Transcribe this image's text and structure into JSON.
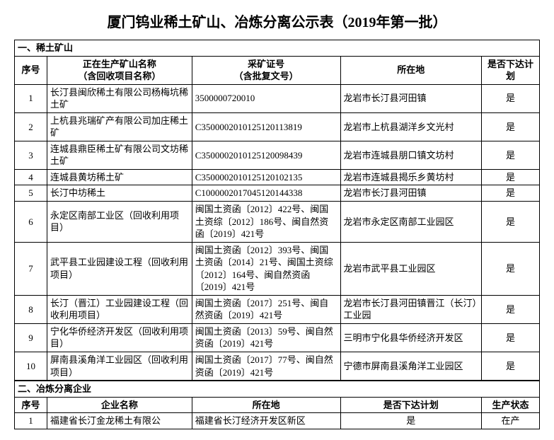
{
  "title": "厦门钨业稀土矿山、冶炼分离公示表（2019年第一批）",
  "section1": {
    "header": "一、稀土矿山",
    "columns": {
      "seq": "序号",
      "name": "正在生产矿山名称\n（含回收项目名称）",
      "license": "采矿证号\n（含批复文号）",
      "location": "所在地",
      "plan": "是否下达计划"
    },
    "rows": [
      {
        "seq": "1",
        "name": "长汀县闽欣稀土有限公司杨梅坑稀土矿",
        "license": "3500000720010",
        "location": "龙岩市长汀县河田镇",
        "plan": "是"
      },
      {
        "seq": "2",
        "name": "上杭县兆瑞矿产有限公司加庄稀土矿",
        "license": "C3500002010125120113819",
        "location": "龙岩市上杭县湖洋乡文光村",
        "plan": "是"
      },
      {
        "seq": "3",
        "name": "连城县鼎臣稀土矿有限公司文坊稀土矿",
        "license": "C3500002010125120098439",
        "location": "龙岩市连城县朋口镇文坊村",
        "plan": "是"
      },
      {
        "seq": "4",
        "name": "连城县黄坊稀土矿",
        "license": "C3500002010125120102135",
        "location": "龙岩市连城县揭乐乡黄坊村",
        "plan": "是"
      },
      {
        "seq": "5",
        "name": "长汀中坊稀土",
        "license": "C1000002017045120144338",
        "location": "龙岩市长汀县河田镇",
        "plan": "是"
      },
      {
        "seq": "6",
        "name": "永定区南部工业区（回收利用项目）",
        "license": "闽国土资函〔2012〕422号、闽国土资综〔2012〕186号、闽自然资函〔2019〕421号",
        "location": "龙岩市永定区南部工业园区",
        "plan": "是"
      },
      {
        "seq": "7",
        "name": "武平县工业园建设工程（回收利用项目）",
        "license": "闽国土资函〔2012〕393号、闽国土资函〔2014〕21号、闽国土资综〔2012〕164号、闽自然资函〔2019〕421号",
        "location": "龙岩市武平县工业园区",
        "plan": "是"
      },
      {
        "seq": "8",
        "name": "长汀（晋江）工业园建设工程（回收利用项目）",
        "license": "闽国土资函〔2017〕251号、闽自然资函〔2019〕421号",
        "location": "龙岩市长汀县河田镇晋江（长汀）工业园",
        "plan": "是"
      },
      {
        "seq": "9",
        "name": "宁化华侨经济开发区（回收利用项目）",
        "license": "闽国土资函〔2013〕59号、闽自然资函〔2019〕421号",
        "location": "三明市宁化县华侨经济开发区",
        "plan": "是"
      },
      {
        "seq": "10",
        "name": "屏南县溪角洋工业园区（回收利用项目）",
        "license": "闽国土资函〔2017〕77号、闽自然资函〔2019〕421号",
        "location": "宁德市屏南县溪角洋工业园区",
        "plan": "是"
      }
    ]
  },
  "section2": {
    "header": "二、冶炼分离企业",
    "columns": {
      "seq": "序号",
      "name": "企业名称",
      "location": "所在地",
      "plan": "是否下达计划",
      "status": "生产状态"
    },
    "rows": [
      {
        "seq": "1",
        "name": "福建省长汀金龙稀土有限公",
        "location": "福建省长汀经济开发区新区",
        "plan": "是",
        "status": "在产"
      }
    ]
  }
}
